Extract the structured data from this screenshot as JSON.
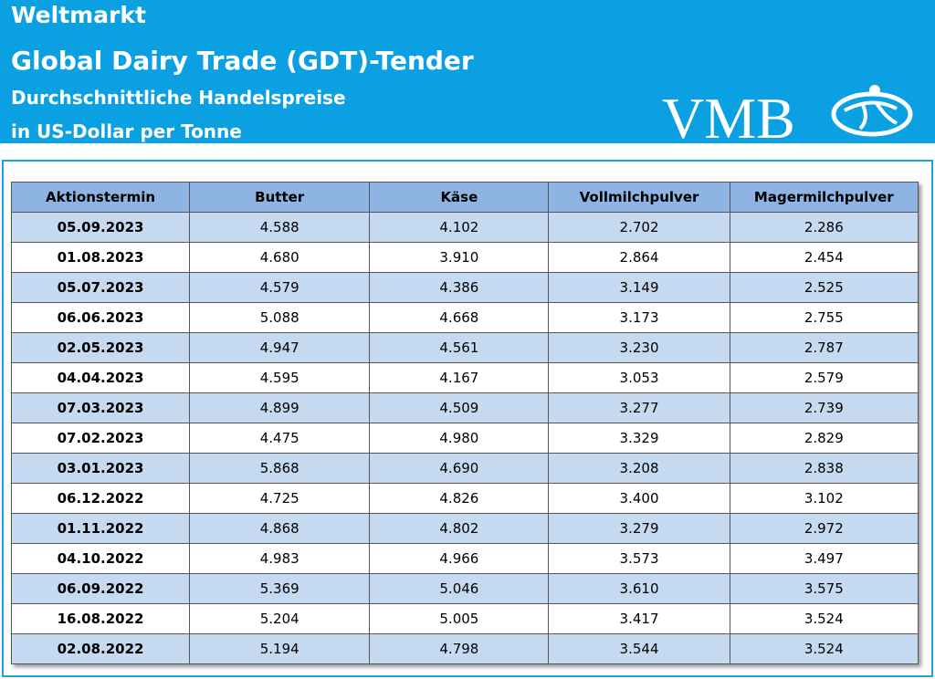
{
  "header": {
    "title": "Weltmarkt",
    "subtitle": "Global Dairy Trade (GDT)-Tender",
    "line1": "Durchschnittliche Handelspreise",
    "line2": "in US-Dollar per Tonne",
    "logo": "VMB"
  },
  "table": {
    "columns": [
      "Aktionstermin",
      "Butter",
      "Käse",
      "Vollmilchpulver",
      "Magermilchpulver"
    ],
    "rows": [
      [
        "05.09.2023",
        "4.588",
        "4.102",
        "2.702",
        "2.286"
      ],
      [
        "01.08.2023",
        "4.680",
        "3.910",
        "2.864",
        "2.454"
      ],
      [
        "05.07.2023",
        "4.579",
        "4.386",
        "3.149",
        "2.525"
      ],
      [
        "06.06.2023",
        "5.088",
        "4.668",
        "3.173",
        "2.755"
      ],
      [
        "02.05.2023",
        "4.947",
        "4.561",
        "3.230",
        "2.787"
      ],
      [
        "04.04.2023",
        "4.595",
        "4.167",
        "3.053",
        "2.579"
      ],
      [
        "07.03.2023",
        "4.899",
        "4.509",
        "3.277",
        "2.739"
      ],
      [
        "07.02.2023",
        "4.475",
        "4.980",
        "3.329",
        "2.829"
      ],
      [
        "03.01.2023",
        "5.868",
        "4.690",
        "3.208",
        "2.838"
      ],
      [
        "06.12.2022",
        "4.725",
        "4.826",
        "3.400",
        "3.102"
      ],
      [
        "01.11.2022",
        "4.868",
        "4.802",
        "3.279",
        "2.972"
      ],
      [
        "04.10.2022",
        "4.983",
        "4.966",
        "3.573",
        "3.497"
      ],
      [
        "06.09.2022",
        "5.369",
        "5.046",
        "3.610",
        "3.575"
      ],
      [
        "16.08.2022",
        "5.204",
        "5.005",
        "3.417",
        "3.524"
      ],
      [
        "02.08.2022",
        "5.194",
        "4.798",
        "3.544",
        "3.524"
      ]
    ]
  }
}
